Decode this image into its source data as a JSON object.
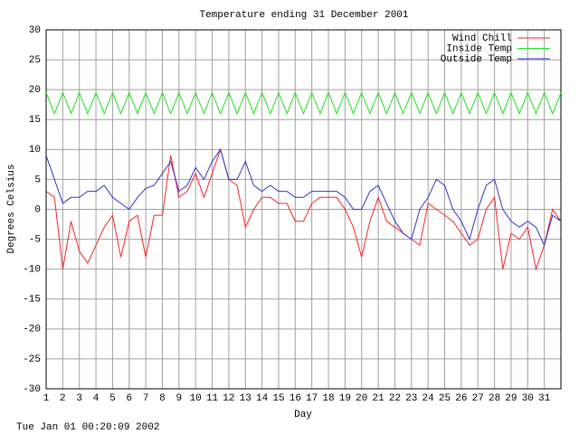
{
  "chart_data": {
    "type": "line",
    "title": "Temperature ending 31 December 2001",
    "x_label": "Day",
    "y_label": "Degrees Celsius",
    "footer": "Tue Jan 01 00:20:09 2002",
    "grid": true,
    "legend": "top-right",
    "xlim": [
      1,
      32
    ],
    "ylim": [
      -30,
      30
    ],
    "xticks": [
      1,
      2,
      3,
      4,
      5,
      6,
      7,
      8,
      9,
      10,
      11,
      12,
      13,
      14,
      15,
      16,
      17,
      18,
      19,
      20,
      21,
      22,
      23,
      24,
      25,
      26,
      27,
      28,
      29,
      30,
      31
    ],
    "yticks": [
      -30,
      -25,
      -20,
      -15,
      -10,
      -5,
      0,
      5,
      10,
      15,
      20,
      25,
      30
    ],
    "x": [
      1,
      1.5,
      2,
      2.5,
      3,
      3.5,
      4,
      4.5,
      5,
      5.5,
      6,
      6.5,
      7,
      7.5,
      8,
      8.5,
      9,
      9.5,
      10,
      10.5,
      11,
      11.5,
      12,
      12.5,
      13,
      13.5,
      14,
      14.5,
      15,
      15.5,
      16,
      16.5,
      17,
      17.5,
      18,
      18.5,
      19,
      19.5,
      20,
      20.5,
      21,
      21.5,
      22,
      22.5,
      23,
      23.5,
      24,
      24.5,
      25,
      25.5,
      26,
      26.5,
      27,
      27.5,
      28,
      28.5,
      29,
      29.5,
      30,
      30.5,
      31,
      31.5,
      32
    ],
    "series": [
      {
        "name": "Wind Chill",
        "color": "#ff2020",
        "values": [
          3,
          2,
          -10,
          -2,
          -7,
          -9,
          -6,
          -3,
          -1,
          -8,
          -2,
          -1,
          -8,
          -1,
          -1,
          9,
          2,
          3,
          6,
          2,
          6,
          10,
          5,
          4,
          -3,
          0,
          2,
          2,
          1,
          1,
          -2,
          -2,
          1,
          2,
          2,
          2,
          0,
          -3,
          -8,
          -2,
          2,
          -2,
          -3,
          -4,
          -5,
          -6,
          1,
          0,
          -1,
          -2,
          -4,
          -6,
          -5,
          0,
          2,
          -10,
          -4,
          -5,
          -3,
          -10,
          -6,
          0,
          -2
        ]
      },
      {
        "name": "Inside Temp",
        "color": "#20e020",
        "values": [
          19.5,
          16,
          19.5,
          16,
          19.5,
          16,
          19.5,
          16,
          19.5,
          16,
          19.5,
          16,
          19.5,
          16,
          19.5,
          16,
          19.5,
          16,
          19.5,
          16,
          19.5,
          16,
          19.5,
          16,
          19.5,
          16,
          19.5,
          16,
          19.5,
          16,
          19.5,
          16,
          19.5,
          16,
          19.5,
          16,
          19.5,
          16,
          19.5,
          16,
          19.5,
          16,
          19.5,
          16,
          19.5,
          16,
          19.5,
          16,
          19.5,
          16,
          19.5,
          16,
          19.5,
          16,
          19.5,
          16,
          19.5,
          16,
          19.5,
          16,
          19.5,
          16,
          19.5
        ]
      },
      {
        "name": "Outside Temp",
        "color": "#3030d0",
        "values": [
          9,
          5,
          1,
          2,
          2,
          3,
          3,
          4,
          2,
          1,
          0,
          2,
          3.5,
          4,
          6,
          8,
          3,
          4,
          7,
          5,
          8,
          10,
          5,
          5,
          8,
          4,
          3,
          4,
          3,
          3,
          2,
          2,
          3,
          3,
          3,
          3,
          2,
          0,
          0,
          3,
          4,
          1,
          -2,
          -4,
          -5,
          0,
          2,
          5,
          4,
          0,
          -2,
          -5,
          0,
          4,
          5,
          0,
          -2,
          -3,
          -2,
          -3,
          -6,
          -1,
          -2
        ]
      }
    ]
  }
}
